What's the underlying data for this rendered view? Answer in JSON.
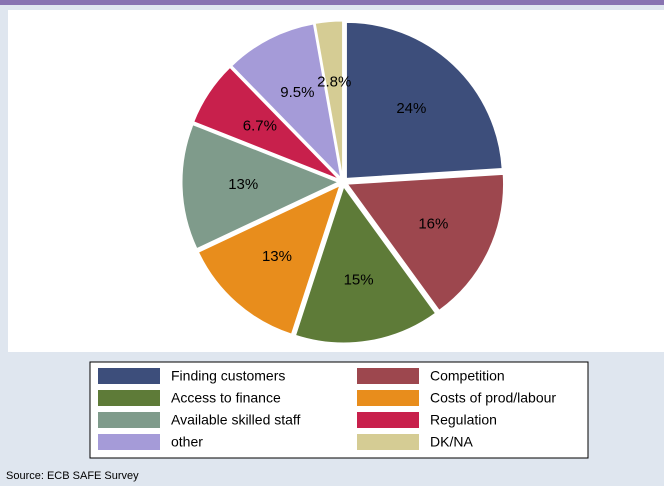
{
  "chart_data": {
    "type": "pie",
    "categories": [
      "Finding customers",
      "Competition",
      "Access to finance",
      "Costs of prod/labour",
      "Available skilled staff",
      "Regulation",
      "other",
      "DK/NA"
    ],
    "values": [
      24,
      16,
      15,
      13,
      13,
      6.7,
      9.5,
      2.8
    ],
    "value_labels": [
      "24%",
      "16%",
      "15%",
      "13%",
      "13%",
      "6.7%",
      "9.5%",
      "2.8%"
    ],
    "colors": [
      "#3d4e7b",
      "#9d474e",
      "#5e7b38",
      "#e88d1c",
      "#7f9b8b",
      "#c8204c",
      "#a59bd8",
      "#d5cc94"
    ],
    "source": "Source: ECB SAFE Survey"
  }
}
